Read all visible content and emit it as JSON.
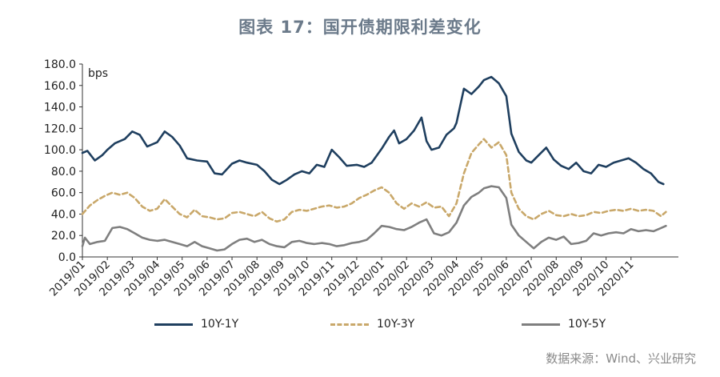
{
  "title": "图表 17：国开债期限利差变化",
  "source": "数据来源：Wind、兴业研究",
  "chart_data": {
    "type": "line",
    "unit": "bps",
    "ylim": [
      0,
      180
    ],
    "yticks": [
      "0.0",
      "20.0",
      "40.0",
      "60.0",
      "80.0",
      "100.0",
      "120.0",
      "140.0",
      "160.0",
      "180.0"
    ],
    "xlim": [
      "2019-01",
      "2020-11.9"
    ],
    "x_tick_labels": [
      "2019/01",
      "2019/02",
      "2019/03",
      "2019/04",
      "2019/05",
      "2019/06",
      "2019/07",
      "2019/08",
      "2019/09",
      "2019/10",
      "2019/11",
      "2019/12",
      "2020/01",
      "2020/02",
      "2020/03",
      "2020/04",
      "2020/05",
      "2020/06",
      "2020/07",
      "2020/08",
      "2020/09",
      "2020/10",
      "2020/11"
    ],
    "grid": false,
    "legend_position": "bottom",
    "series": [
      {
        "name": "10Y-1Y",
        "color": "#1f3f5f",
        "style": "solid",
        "points": [
          [
            0,
            97
          ],
          [
            0.2,
            99
          ],
          [
            0.5,
            90
          ],
          [
            0.8,
            95
          ],
          [
            1.0,
            100
          ],
          [
            1.3,
            106
          ],
          [
            1.7,
            110
          ],
          [
            2.0,
            117
          ],
          [
            2.3,
            114
          ],
          [
            2.6,
            103
          ],
          [
            3.0,
            107
          ],
          [
            3.3,
            117
          ],
          [
            3.6,
            112
          ],
          [
            3.9,
            104
          ],
          [
            4.2,
            92
          ],
          [
            4.6,
            90
          ],
          [
            5.0,
            89
          ],
          [
            5.3,
            78
          ],
          [
            5.6,
            77
          ],
          [
            6.0,
            87
          ],
          [
            6.3,
            90
          ],
          [
            6.6,
            88
          ],
          [
            7.0,
            86
          ],
          [
            7.3,
            80
          ],
          [
            7.6,
            72
          ],
          [
            7.9,
            68
          ],
          [
            8.2,
            72
          ],
          [
            8.5,
            77
          ],
          [
            8.8,
            80
          ],
          [
            9.1,
            78
          ],
          [
            9.4,
            86
          ],
          [
            9.7,
            84
          ],
          [
            10.0,
            100
          ],
          [
            10.3,
            93
          ],
          [
            10.6,
            85
          ],
          [
            11.0,
            86
          ],
          [
            11.3,
            84
          ],
          [
            11.6,
            88
          ],
          [
            12.0,
            101
          ],
          [
            12.3,
            112
          ],
          [
            12.5,
            118
          ],
          [
            12.7,
            106
          ],
          [
            13.0,
            110
          ],
          [
            13.3,
            118
          ],
          [
            13.6,
            130
          ],
          [
            13.8,
            108
          ],
          [
            14.0,
            100
          ],
          [
            14.3,
            102
          ],
          [
            14.6,
            114
          ],
          [
            14.9,
            120
          ],
          [
            15.0,
            125
          ],
          [
            15.3,
            157
          ],
          [
            15.6,
            152
          ],
          [
            15.9,
            159
          ],
          [
            16.1,
            165
          ],
          [
            16.4,
            168
          ],
          [
            16.7,
            162
          ],
          [
            17.0,
            150
          ],
          [
            17.2,
            115
          ],
          [
            17.5,
            98
          ],
          [
            17.8,
            90
          ],
          [
            18.0,
            88
          ],
          [
            18.3,
            95
          ],
          [
            18.6,
            102
          ],
          [
            18.9,
            91
          ],
          [
            19.2,
            85
          ],
          [
            19.5,
            82
          ],
          [
            19.8,
            88
          ],
          [
            20.1,
            80
          ],
          [
            20.4,
            78
          ],
          [
            20.7,
            86
          ],
          [
            21.0,
            84
          ],
          [
            21.3,
            88
          ],
          [
            21.6,
            90
          ],
          [
            21.9,
            92
          ],
          [
            22.2,
            88
          ],
          [
            22.5,
            82
          ],
          [
            22.8,
            78
          ],
          [
            23.1,
            70
          ],
          [
            23.3,
            68
          ]
        ]
      },
      {
        "name": "10Y-3Y",
        "color": "#c9a86a",
        "style": "dashed",
        "points": [
          [
            0,
            40
          ],
          [
            0.3,
            48
          ],
          [
            0.6,
            53
          ],
          [
            0.9,
            57
          ],
          [
            1.2,
            60
          ],
          [
            1.5,
            58
          ],
          [
            1.8,
            60
          ],
          [
            2.1,
            55
          ],
          [
            2.4,
            47
          ],
          [
            2.7,
            43
          ],
          [
            3.0,
            45
          ],
          [
            3.3,
            54
          ],
          [
            3.6,
            47
          ],
          [
            3.9,
            40
          ],
          [
            4.2,
            37
          ],
          [
            4.5,
            44
          ],
          [
            4.8,
            38
          ],
          [
            5.1,
            37
          ],
          [
            5.4,
            35
          ],
          [
            5.7,
            36
          ],
          [
            6.0,
            41
          ],
          [
            6.3,
            42
          ],
          [
            6.6,
            40
          ],
          [
            6.9,
            38
          ],
          [
            7.2,
            42
          ],
          [
            7.5,
            36
          ],
          [
            7.8,
            33
          ],
          [
            8.1,
            35
          ],
          [
            8.4,
            42
          ],
          [
            8.7,
            44
          ],
          [
            9.0,
            43
          ],
          [
            9.3,
            45
          ],
          [
            9.6,
            47
          ],
          [
            9.9,
            48
          ],
          [
            10.2,
            46
          ],
          [
            10.5,
            47
          ],
          [
            10.8,
            50
          ],
          [
            11.1,
            55
          ],
          [
            11.4,
            58
          ],
          [
            11.7,
            62
          ],
          [
            12.0,
            65
          ],
          [
            12.3,
            60
          ],
          [
            12.6,
            50
          ],
          [
            12.9,
            45
          ],
          [
            13.2,
            50
          ],
          [
            13.5,
            47
          ],
          [
            13.8,
            51
          ],
          [
            14.1,
            46
          ],
          [
            14.4,
            47
          ],
          [
            14.7,
            38
          ],
          [
            15.0,
            50
          ],
          [
            15.3,
            78
          ],
          [
            15.6,
            97
          ],
          [
            15.9,
            105
          ],
          [
            16.1,
            110
          ],
          [
            16.4,
            102
          ],
          [
            16.7,
            107
          ],
          [
            17.0,
            95
          ],
          [
            17.2,
            60
          ],
          [
            17.5,
            45
          ],
          [
            17.8,
            38
          ],
          [
            18.1,
            35
          ],
          [
            18.4,
            40
          ],
          [
            18.7,
            43
          ],
          [
            19.0,
            39
          ],
          [
            19.3,
            38
          ],
          [
            19.6,
            40
          ],
          [
            19.9,
            38
          ],
          [
            20.2,
            39
          ],
          [
            20.5,
            42
          ],
          [
            20.8,
            41
          ],
          [
            21.1,
            43
          ],
          [
            21.4,
            44
          ],
          [
            21.7,
            43
          ],
          [
            22.0,
            45
          ],
          [
            22.3,
            43
          ],
          [
            22.6,
            44
          ],
          [
            22.9,
            43
          ],
          [
            23.2,
            38
          ],
          [
            23.4,
            42
          ]
        ]
      },
      {
        "name": "10Y-5Y",
        "color": "#7f7f7f",
        "style": "solid",
        "points": [
          [
            0,
            10
          ],
          [
            0.1,
            18
          ],
          [
            0.3,
            12
          ],
          [
            0.6,
            14
          ],
          [
            0.9,
            15
          ],
          [
            1.2,
            27
          ],
          [
            1.5,
            28
          ],
          [
            1.8,
            26
          ],
          [
            2.1,
            22
          ],
          [
            2.4,
            18
          ],
          [
            2.7,
            16
          ],
          [
            3.0,
            15
          ],
          [
            3.3,
            16
          ],
          [
            3.6,
            14
          ],
          [
            3.9,
            12
          ],
          [
            4.2,
            10
          ],
          [
            4.5,
            14
          ],
          [
            4.8,
            10
          ],
          [
            5.1,
            8
          ],
          [
            5.4,
            6
          ],
          [
            5.7,
            7
          ],
          [
            6.0,
            12
          ],
          [
            6.3,
            16
          ],
          [
            6.6,
            17
          ],
          [
            6.9,
            14
          ],
          [
            7.2,
            16
          ],
          [
            7.5,
            12
          ],
          [
            7.8,
            10
          ],
          [
            8.1,
            9
          ],
          [
            8.4,
            14
          ],
          [
            8.7,
            15
          ],
          [
            9.0,
            13
          ],
          [
            9.3,
            12
          ],
          [
            9.6,
            13
          ],
          [
            9.9,
            12
          ],
          [
            10.2,
            10
          ],
          [
            10.5,
            11
          ],
          [
            10.8,
            13
          ],
          [
            11.1,
            14
          ],
          [
            11.4,
            16
          ],
          [
            11.7,
            22
          ],
          [
            12.0,
            29
          ],
          [
            12.3,
            28
          ],
          [
            12.6,
            26
          ],
          [
            12.9,
            25
          ],
          [
            13.2,
            28
          ],
          [
            13.5,
            32
          ],
          [
            13.8,
            35
          ],
          [
            14.1,
            22
          ],
          [
            14.4,
            20
          ],
          [
            14.7,
            23
          ],
          [
            15.0,
            32
          ],
          [
            15.3,
            48
          ],
          [
            15.6,
            56
          ],
          [
            15.9,
            60
          ],
          [
            16.1,
            64
          ],
          [
            16.4,
            66
          ],
          [
            16.7,
            65
          ],
          [
            17.0,
            55
          ],
          [
            17.2,
            30
          ],
          [
            17.5,
            20
          ],
          [
            17.8,
            14
          ],
          [
            18.1,
            8
          ],
          [
            18.4,
            14
          ],
          [
            18.7,
            18
          ],
          [
            19.0,
            16
          ],
          [
            19.3,
            19
          ],
          [
            19.6,
            12
          ],
          [
            19.9,
            13
          ],
          [
            20.2,
            15
          ],
          [
            20.5,
            22
          ],
          [
            20.8,
            20
          ],
          [
            21.1,
            22
          ],
          [
            21.4,
            23
          ],
          [
            21.7,
            22
          ],
          [
            22.0,
            26
          ],
          [
            22.3,
            24
          ],
          [
            22.6,
            25
          ],
          [
            22.9,
            24
          ],
          [
            23.2,
            27
          ],
          [
            23.4,
            29
          ]
        ]
      }
    ]
  }
}
